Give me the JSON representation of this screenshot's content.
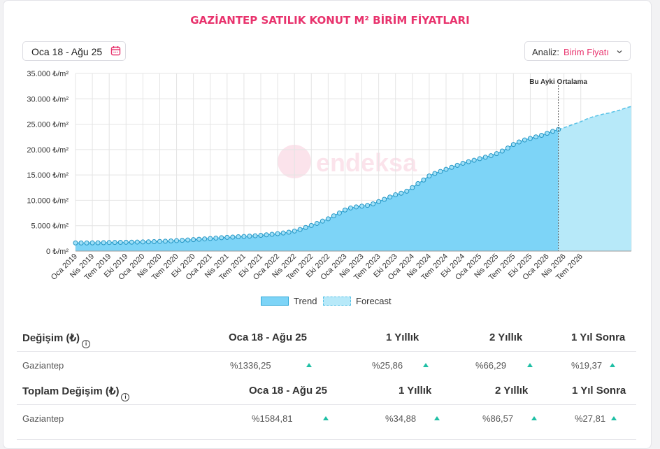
{
  "title": "GAZİANTEP SATILIK KONUT M² BİRİM FİYATLARI",
  "date_range": "Oca 18 - Ağu 25",
  "analysis": {
    "label": "Analiz:",
    "value": "Birim Fiyatı"
  },
  "watermark": "endeksa",
  "colors": {
    "accent": "#e8336d",
    "trend_fill": "#7dd4f7",
    "trend_line": "#2fa9d9",
    "forecast_fill": "#b7e9f9",
    "up": "#1fbfa5"
  },
  "chart_data": {
    "type": "area",
    "xlabel": "",
    "ylabel": "",
    "ylim": [
      0,
      35000
    ],
    "y_ticks": [
      "0 ₺/m²",
      "5.000 ₺/m²",
      "10.000 ₺/m²",
      "15.000 ₺/m²",
      "20.000 ₺/m²",
      "25.000 ₺/m²",
      "30.000 ₺/m²",
      "35.000 ₺/m²"
    ],
    "x_ticks": [
      "Oca 2019",
      "Nis 2019",
      "Tem 2019",
      "Eki 2019",
      "Oca 2020",
      "Nis 2020",
      "Tem 2020",
      "Eki 2020",
      "Oca 2021",
      "Nis 2021",
      "Tem 2021",
      "Eki 2021",
      "Oca 2022",
      "Nis 2022",
      "Tem 2022",
      "Eki 2022",
      "Oca 2023",
      "Nis 2023",
      "Tem 2023",
      "Eki 2023",
      "Oca 2024",
      "Nis 2024",
      "Tem 2024",
      "Eki 2024",
      "Oca 2025",
      "Nis 2025",
      "Tem 2025",
      "Eki 2025",
      "Oca 2026",
      "Nis 2026",
      "Tem 2026"
    ],
    "grid": true,
    "legend": "bottom",
    "annotation": "Bu Ayki Ortalama",
    "series": [
      {
        "name": "Trend",
        "values": [
          1600,
          1600,
          1600,
          1620,
          1640,
          1650,
          1680,
          1700,
          1720,
          1740,
          1760,
          1780,
          1800,
          1830,
          1860,
          1900,
          1950,
          2000,
          2060,
          2120,
          2190,
          2260,
          2330,
          2400,
          2480,
          2560,
          2640,
          2700,
          2760,
          2820,
          2880,
          2950,
          3020,
          3100,
          3200,
          3310,
          3430,
          3560,
          3720,
          3950,
          4250,
          4650,
          5050,
          5450,
          5900,
          6350,
          6950,
          7500,
          8100,
          8500,
          8700,
          8850,
          9000,
          9300,
          9750,
          10200,
          10650,
          11100,
          11400,
          11800,
          12500,
          13300,
          14000,
          14800,
          15300,
          15700,
          16100,
          16500,
          16900,
          17300,
          17600,
          17900,
          18200,
          18500,
          18800,
          19200,
          19700,
          20300,
          21000,
          21500,
          21900,
          22200,
          22500,
          22800,
          23200,
          23600,
          23950
        ]
      },
      {
        "name": "Forecast",
        "values": [
          23950,
          24300,
          24700,
          25100,
          25500,
          26000,
          26400,
          26700,
          27000,
          27200,
          27500,
          27800,
          28200,
          28500
        ]
      }
    ]
  },
  "legend_labels": {
    "trend": "Trend",
    "forecast": "Forecast"
  },
  "table1": {
    "headers": [
      "Değişim (₺)",
      "Oca 18 - Ağu 25",
      "1 Yıllık",
      "2 Yıllık",
      "1 Yıl Sonra"
    ],
    "row": [
      "Gaziantep",
      "%1336,25",
      "%25,86",
      "%66,29",
      "%19,37"
    ]
  },
  "table2": {
    "headers": [
      "Toplam Değişim (₺)",
      "Oca 18 - Ağu 25",
      "1 Yıllık",
      "2 Yıllık",
      "1 Yıl Sonra"
    ],
    "row": [
      "Gaziantep",
      "%1584,81",
      "%34,88",
      "%86,57",
      "%27,81"
    ]
  }
}
